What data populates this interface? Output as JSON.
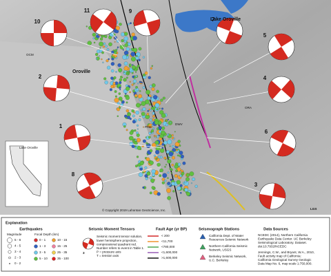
{
  "map": {
    "lake": "Lake Oroville",
    "town": "Oroville",
    "stations": [
      "OCM",
      "PAM",
      "DWV",
      "ORA"
    ],
    "copyright": "© Copyright 2019 Lahontan GeoScience, Inc.",
    "logo": "LGS",
    "inset_lake": "Lake Oroville",
    "tensor_numbers": [
      10,
      11,
      9,
      7,
      5,
      2,
      4,
      1,
      6,
      8,
      3
    ]
  },
  "legend": {
    "title": "Explanation",
    "earthquakes": {
      "title": "Earthquakes",
      "magnitude_title": "Magnitude",
      "magnitudes": [
        "5 - 6",
        "4 - 5",
        "3 - 4",
        "2 - 3",
        "0 - 2"
      ],
      "depth_title": "Focal Depth (km)",
      "depths": [
        "0 - 1",
        "1 - 3",
        "3 - 5",
        "5 - 10",
        "10 - 15",
        "15 - 25",
        "25 - 35",
        "35 - 100"
      ]
    },
    "tensors": {
      "title": "Seismic Moment Tensors",
      "example_number": "3",
      "text": [
        "Seismic moment tensor solution,",
        "lower hemisphere projection,",
        "compressional quadrant red.",
        "Number refers to event in Table 1.",
        "P = pressure axis",
        "T = tension axis"
      ]
    },
    "fault_age": {
      "title": "Fault Age (yr BP)",
      "items": [
        "< 200",
        "<11,700",
        "<780,000",
        "<1,600,000",
        ">1,600,000"
      ]
    },
    "stations": {
      "title": "Seismograph Stations",
      "items": [
        [
          "California Dept. of Water",
          "Resources Seismic Network"
        ],
        [
          "Northern California Seismic",
          "Network, USGS"
        ],
        [
          "Berkeley Seismic Network,",
          "U.C. Berkeley"
        ]
      ]
    },
    "sources": {
      "title": "Data Sources",
      "items": [
        [
          "NCEDC (2014), Northern California",
          "Earthquake Data Center. UC Berkeley",
          "Seismological Laboratory. Dataset.",
          "doi:10.7932/NCEDC"
        ],
        [
          "Jennings, C.W., and Bryant, W.A., 2010,",
          "Fault activity map of California:",
          "California Geological Survey Geologic",
          "Data Map No. 6, map scale 1:750,000."
        ]
      ]
    }
  }
}
